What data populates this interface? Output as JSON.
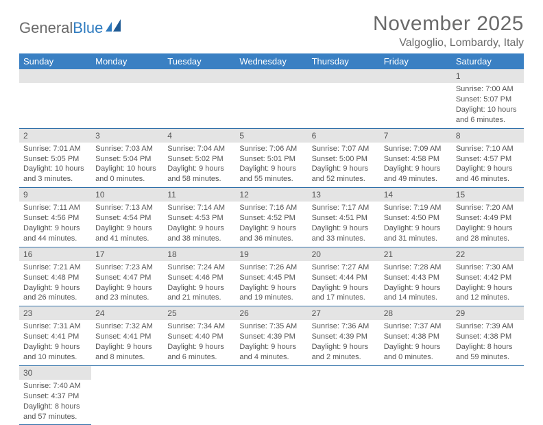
{
  "logo": {
    "text1": "General",
    "text2": "Blue"
  },
  "header": {
    "month_title": "November 2025",
    "location": "Valgoglio, Lombardy, Italy"
  },
  "colors": {
    "header_bg": "#3a80c3",
    "header_text": "#ffffff",
    "daynum_bg": "#e4e4e4",
    "row_divider": "#2f6fa8",
    "body_text": "#555555",
    "logo_gray": "#6a6a6a",
    "logo_blue": "#2f7bbf"
  },
  "weekdays": [
    "Sunday",
    "Monday",
    "Tuesday",
    "Wednesday",
    "Thursday",
    "Friday",
    "Saturday"
  ],
  "weeks": [
    [
      null,
      null,
      null,
      null,
      null,
      null,
      {
        "n": "1",
        "sr": "Sunrise: 7:00 AM",
        "ss": "Sunset: 5:07 PM",
        "dl": "Daylight: 10 hours and 6 minutes."
      }
    ],
    [
      {
        "n": "2",
        "sr": "Sunrise: 7:01 AM",
        "ss": "Sunset: 5:05 PM",
        "dl": "Daylight: 10 hours and 3 minutes."
      },
      {
        "n": "3",
        "sr": "Sunrise: 7:03 AM",
        "ss": "Sunset: 5:04 PM",
        "dl": "Daylight: 10 hours and 0 minutes."
      },
      {
        "n": "4",
        "sr": "Sunrise: 7:04 AM",
        "ss": "Sunset: 5:02 PM",
        "dl": "Daylight: 9 hours and 58 minutes."
      },
      {
        "n": "5",
        "sr": "Sunrise: 7:06 AM",
        "ss": "Sunset: 5:01 PM",
        "dl": "Daylight: 9 hours and 55 minutes."
      },
      {
        "n": "6",
        "sr": "Sunrise: 7:07 AM",
        "ss": "Sunset: 5:00 PM",
        "dl": "Daylight: 9 hours and 52 minutes."
      },
      {
        "n": "7",
        "sr": "Sunrise: 7:09 AM",
        "ss": "Sunset: 4:58 PM",
        "dl": "Daylight: 9 hours and 49 minutes."
      },
      {
        "n": "8",
        "sr": "Sunrise: 7:10 AM",
        "ss": "Sunset: 4:57 PM",
        "dl": "Daylight: 9 hours and 46 minutes."
      }
    ],
    [
      {
        "n": "9",
        "sr": "Sunrise: 7:11 AM",
        "ss": "Sunset: 4:56 PM",
        "dl": "Daylight: 9 hours and 44 minutes."
      },
      {
        "n": "10",
        "sr": "Sunrise: 7:13 AM",
        "ss": "Sunset: 4:54 PM",
        "dl": "Daylight: 9 hours and 41 minutes."
      },
      {
        "n": "11",
        "sr": "Sunrise: 7:14 AM",
        "ss": "Sunset: 4:53 PM",
        "dl": "Daylight: 9 hours and 38 minutes."
      },
      {
        "n": "12",
        "sr": "Sunrise: 7:16 AM",
        "ss": "Sunset: 4:52 PM",
        "dl": "Daylight: 9 hours and 36 minutes."
      },
      {
        "n": "13",
        "sr": "Sunrise: 7:17 AM",
        "ss": "Sunset: 4:51 PM",
        "dl": "Daylight: 9 hours and 33 minutes."
      },
      {
        "n": "14",
        "sr": "Sunrise: 7:19 AM",
        "ss": "Sunset: 4:50 PM",
        "dl": "Daylight: 9 hours and 31 minutes."
      },
      {
        "n": "15",
        "sr": "Sunrise: 7:20 AM",
        "ss": "Sunset: 4:49 PM",
        "dl": "Daylight: 9 hours and 28 minutes."
      }
    ],
    [
      {
        "n": "16",
        "sr": "Sunrise: 7:21 AM",
        "ss": "Sunset: 4:48 PM",
        "dl": "Daylight: 9 hours and 26 minutes."
      },
      {
        "n": "17",
        "sr": "Sunrise: 7:23 AM",
        "ss": "Sunset: 4:47 PM",
        "dl": "Daylight: 9 hours and 23 minutes."
      },
      {
        "n": "18",
        "sr": "Sunrise: 7:24 AM",
        "ss": "Sunset: 4:46 PM",
        "dl": "Daylight: 9 hours and 21 minutes."
      },
      {
        "n": "19",
        "sr": "Sunrise: 7:26 AM",
        "ss": "Sunset: 4:45 PM",
        "dl": "Daylight: 9 hours and 19 minutes."
      },
      {
        "n": "20",
        "sr": "Sunrise: 7:27 AM",
        "ss": "Sunset: 4:44 PM",
        "dl": "Daylight: 9 hours and 17 minutes."
      },
      {
        "n": "21",
        "sr": "Sunrise: 7:28 AM",
        "ss": "Sunset: 4:43 PM",
        "dl": "Daylight: 9 hours and 14 minutes."
      },
      {
        "n": "22",
        "sr": "Sunrise: 7:30 AM",
        "ss": "Sunset: 4:42 PM",
        "dl": "Daylight: 9 hours and 12 minutes."
      }
    ],
    [
      {
        "n": "23",
        "sr": "Sunrise: 7:31 AM",
        "ss": "Sunset: 4:41 PM",
        "dl": "Daylight: 9 hours and 10 minutes."
      },
      {
        "n": "24",
        "sr": "Sunrise: 7:32 AM",
        "ss": "Sunset: 4:41 PM",
        "dl": "Daylight: 9 hours and 8 minutes."
      },
      {
        "n": "25",
        "sr": "Sunrise: 7:34 AM",
        "ss": "Sunset: 4:40 PM",
        "dl": "Daylight: 9 hours and 6 minutes."
      },
      {
        "n": "26",
        "sr": "Sunrise: 7:35 AM",
        "ss": "Sunset: 4:39 PM",
        "dl": "Daylight: 9 hours and 4 minutes."
      },
      {
        "n": "27",
        "sr": "Sunrise: 7:36 AM",
        "ss": "Sunset: 4:39 PM",
        "dl": "Daylight: 9 hours and 2 minutes."
      },
      {
        "n": "28",
        "sr": "Sunrise: 7:37 AM",
        "ss": "Sunset: 4:38 PM",
        "dl": "Daylight: 9 hours and 0 minutes."
      },
      {
        "n": "29",
        "sr": "Sunrise: 7:39 AM",
        "ss": "Sunset: 4:38 PM",
        "dl": "Daylight: 8 hours and 59 minutes."
      }
    ],
    [
      {
        "n": "30",
        "sr": "Sunrise: 7:40 AM",
        "ss": "Sunset: 4:37 PM",
        "dl": "Daylight: 8 hours and 57 minutes."
      },
      null,
      null,
      null,
      null,
      null,
      null
    ]
  ]
}
